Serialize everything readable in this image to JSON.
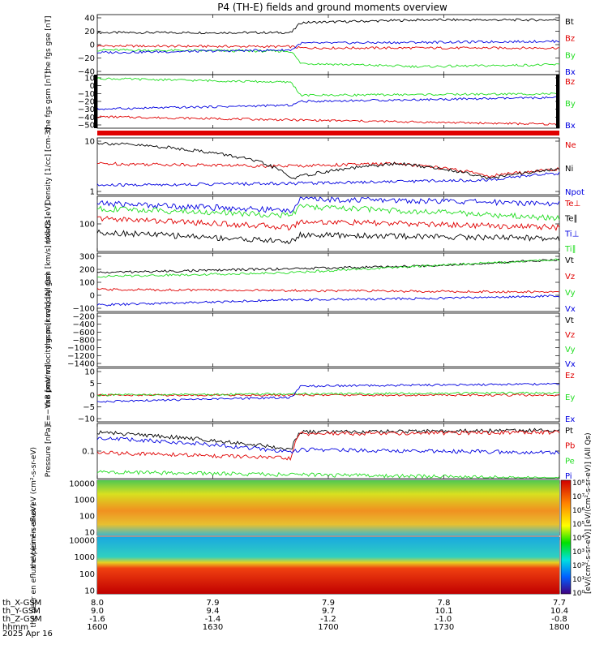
{
  "title": "P4 (TH-E) fields and ground moments overview",
  "date_label": "2025 Apr 16",
  "colors": {
    "black": "#000000",
    "red": "#e00000",
    "green": "#22dd22",
    "blue": "#0000e0"
  },
  "colorbar": {
    "ticks": [
      "10⁸",
      "10⁷",
      "10⁶",
      "10⁵",
      "10⁴",
      "10³",
      "10²",
      "10¹",
      "10⁰"
    ],
    "label": "[eV/(cm²-s-sr-eV)] [eV/(cm²-s-sr-eV)]  (All Qs)"
  },
  "orbit": {
    "row_labels": [
      "th_X-GSM",
      "th_Y-GSM",
      "th_Z-GSM",
      "hhmm"
    ],
    "columns": [
      [
        "8.0",
        "9.0",
        "-1.6",
        "1600"
      ],
      [
        "7.9",
        "9.4",
        "-1.4",
        "1630"
      ],
      [
        "7.9",
        "9.7",
        "-1.2",
        "1700"
      ],
      [
        "7.8",
        "10.1",
        "-1.0",
        "1730"
      ],
      [
        "7.7",
        "10.4",
        "-0.8",
        "1800"
      ]
    ]
  },
  "chart_data": [
    {
      "type": "line",
      "ylabel": "the fgs gse [nT]",
      "yticks": [
        "40",
        "20",
        "0",
        "−20",
        "−40"
      ],
      "ylim": [
        -45,
        45
      ],
      "x_range": [
        "1600",
        "1800"
      ],
      "series": [
        {
          "name": "Bt",
          "color": "black",
          "points": [
            [
              0,
              18
            ],
            [
              0.42,
              18
            ],
            [
              0.44,
              33
            ],
            [
              0.7,
              37
            ],
            [
              1.0,
              37
            ]
          ]
        },
        {
          "name": "Bz",
          "color": "red",
          "points": [
            [
              0,
              -2
            ],
            [
              0.42,
              -3
            ],
            [
              0.44,
              -5
            ],
            [
              1.0,
              -5
            ]
          ]
        },
        {
          "name": "By",
          "color": "green",
          "points": [
            [
              0,
              -8
            ],
            [
              0.42,
              -10
            ],
            [
              0.44,
              -28
            ],
            [
              0.7,
              -33
            ],
            [
              1.0,
              -30
            ]
          ]
        },
        {
          "name": "Bx",
          "color": "blue",
          "points": [
            [
              0,
              -12
            ],
            [
              0.42,
              -8
            ],
            [
              0.44,
              2
            ],
            [
              1.0,
              5
            ]
          ]
        }
      ]
    },
    {
      "type": "line",
      "ylabel": "the fgs gsm [nT]",
      "yticks": [
        "10",
        "0",
        "−10",
        "−20",
        "−30",
        "−40",
        "−50"
      ],
      "ylim": [
        -55,
        15
      ],
      "series": [
        {
          "name": "Bz",
          "color": "red",
          "points": [
            [
              0,
              -40
            ],
            [
              1.0,
              -50
            ]
          ]
        },
        {
          "name": "By",
          "color": "green",
          "points": [
            [
              0,
              10
            ],
            [
              0.42,
              5
            ],
            [
              0.44,
              -12
            ],
            [
              1.0,
              -10
            ]
          ]
        },
        {
          "name": "Bx",
          "color": "blue",
          "points": [
            [
              0,
              -30
            ],
            [
              0.42,
              -25
            ],
            [
              0.44,
              -20
            ],
            [
              1.0,
              -15
            ]
          ]
        }
      ]
    },
    {
      "type": "line",
      "ylabel": "Density [1/cc] [cm-3]",
      "yticks": [
        "10",
        "1"
      ],
      "ylim": [
        0.3,
        20
      ],
      "log": true,
      "series": [
        {
          "name": "Ne",
          "color": "red",
          "points": [
            [
              0,
              3
            ],
            [
              0.4,
              2.5
            ],
            [
              0.65,
              3
            ],
            [
              0.85,
              1.2
            ],
            [
              1.0,
              2
            ]
          ]
        },
        {
          "name": "Ni",
          "color": "black",
          "points": [
            [
              0,
              14
            ],
            [
              0.15,
              10
            ],
            [
              0.42,
              1.0
            ],
            [
              0.65,
              3
            ],
            [
              0.85,
              1.0
            ],
            [
              1.0,
              2
            ]
          ]
        },
        {
          "name": "Npot",
          "color": "blue",
          "points": [
            [
              0,
              0.6
            ],
            [
              0.42,
              0.7
            ],
            [
              0.85,
              0.9
            ],
            [
              1.0,
              1.5
            ]
          ]
        }
      ]
    },
    {
      "type": "line",
      "ylabel": "moat3 [eV]",
      "yticks": [
        "100"
      ],
      "ylim": [
        20,
        200
      ],
      "log": true,
      "series": [
        {
          "name": "Te⊥",
          "color": "red",
          "points": [
            [
              0,
              80
            ],
            [
              0.42,
              55
            ],
            [
              0.44,
              70
            ],
            [
              1.0,
              55
            ]
          ]
        },
        {
          "name": "Te∥",
          "color": "black",
          "points": [
            [
              0,
              45
            ],
            [
              0.42,
              30
            ],
            [
              0.44,
              40
            ],
            [
              1.0,
              35
            ]
          ]
        },
        {
          "name": "Ti⊥",
          "color": "blue",
          "points": [
            [
              0,
              150
            ],
            [
              0.42,
              110
            ],
            [
              0.44,
              180
            ],
            [
              1.0,
              150
            ]
          ]
        },
        {
          "name": "Ti∥",
          "color": "green",
          "points": [
            [
              0,
              120
            ],
            [
              0.42,
              90
            ],
            [
              0.44,
              130
            ],
            [
              1.0,
              80
            ]
          ]
        }
      ]
    },
    {
      "type": "line",
      "ylabel": "the peir velocity gsm [km/s] (All Qs)",
      "yticks": [
        "300",
        "200",
        "100",
        "0",
        "−100"
      ],
      "ylim": [
        -150,
        300
      ],
      "series": [
        {
          "name": "Vt",
          "color": "black",
          "points": [
            [
              0,
              150
            ],
            [
              0.42,
              180
            ],
            [
              0.7,
              200
            ],
            [
              1.0,
              250
            ]
          ]
        },
        {
          "name": "Vz",
          "color": "red",
          "points": [
            [
              0,
              20
            ],
            [
              1.0,
              0
            ]
          ]
        },
        {
          "name": "Vy",
          "color": "green",
          "points": [
            [
              0,
              120
            ],
            [
              0.42,
              150
            ],
            [
              0.7,
              200
            ],
            [
              1.0,
              250
            ]
          ]
        },
        {
          "name": "Vx",
          "color": "blue",
          "points": [
            [
              0,
              -100
            ],
            [
              0.42,
              -60
            ],
            [
              0.7,
              -50
            ],
            [
              1.0,
              -30
            ]
          ]
        }
      ]
    },
    {
      "type": "line",
      "ylabel": "the peer velocity gsm [km/s] (All Qs)",
      "yticks": [
        "−200",
        "−400",
        "−600",
        "−800",
        "−1000",
        "−1200",
        "−1400"
      ],
      "ylim": [
        -1500,
        -100
      ],
      "series": [
        {
          "name": "Vt",
          "color": "black",
          "points": []
        },
        {
          "name": "Vz",
          "color": "red",
          "points": []
        },
        {
          "name": "Vy",
          "color": "green",
          "points": []
        },
        {
          "name": "Vx",
          "color": "blue",
          "points": []
        }
      ]
    },
    {
      "type": "line",
      "ylabel": "E=−VxB [mV/m]",
      "yticks": [
        "10",
        "5",
        "0",
        "−5",
        "−10"
      ],
      "ylim": [
        -12,
        12
      ],
      "series": [
        {
          "name": "Ez",
          "color": "red",
          "points": [
            [
              0,
              0
            ],
            [
              1.0,
              0
            ]
          ]
        },
        {
          "name": "Ey",
          "color": "green",
          "points": [
            [
              0,
              0
            ],
            [
              0.42,
              0.5
            ],
            [
              1.0,
              1
            ]
          ]
        },
        {
          "name": "Ex",
          "color": "blue",
          "points": [
            [
              0,
              -3
            ],
            [
              0.42,
              -1
            ],
            [
              0.44,
              4
            ],
            [
              1.0,
              5
            ]
          ]
        }
      ]
    },
    {
      "type": "line",
      "ylabel": "Pressure [nPa]",
      "yticks": [
        "0.1"
      ],
      "ylim": [
        0.02,
        0.6
      ],
      "log": true,
      "series": [
        {
          "name": "Pt",
          "color": "black",
          "points": [
            [
              0,
              0.35
            ],
            [
              0.42,
              0.12
            ],
            [
              0.44,
              0.35
            ],
            [
              1.0,
              0.4
            ]
          ]
        },
        {
          "name": "Pb",
          "color": "red",
          "points": [
            [
              0,
              0.1
            ],
            [
              0.42,
              0.07
            ],
            [
              0.44,
              0.32
            ],
            [
              1.0,
              0.35
            ]
          ]
        },
        {
          "name": "Pe",
          "color": "green",
          "points": [
            [
              0,
              0.03
            ],
            [
              1.0,
              0.02
            ]
          ]
        },
        {
          "name": "Pi",
          "color": "blue",
          "points": [
            [
              0,
              0.25
            ],
            [
              0.42,
              0.1
            ],
            [
              0.44,
              0.12
            ],
            [
              1.0,
              0.1
            ]
          ]
        }
      ]
    },
    {
      "type": "heatmap",
      "ylabel": "the peir en eflux eV (cm²-s-sr-eV)",
      "yticks": [
        "10000",
        "1000",
        "100",
        "10"
      ]
    },
    {
      "type": "heatmap",
      "ylabel": "the peer en eflux eV (cm²-s-sr-eV)",
      "yticks": [
        "10000",
        "1000",
        "100",
        "10"
      ]
    }
  ]
}
